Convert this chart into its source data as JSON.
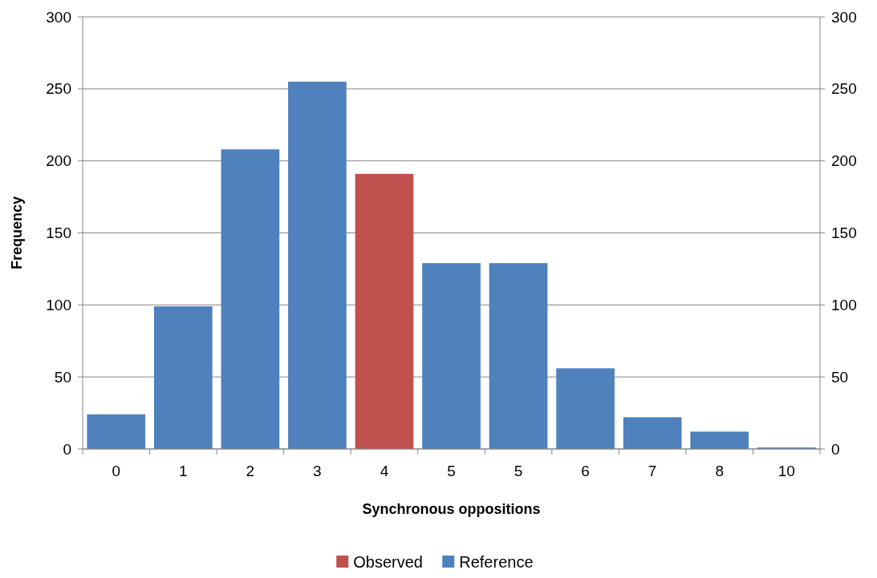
{
  "chart_data": {
    "type": "bar",
    "stacked": true,
    "xlabel": "Synchronous oppositions",
    "ylabel": "Frequency",
    "categories": [
      "0",
      "1",
      "2",
      "3",
      "4",
      "5",
      "5",
      "6",
      "7",
      "8",
      "10"
    ],
    "series": [
      {
        "name": "Observed",
        "color": "#c0504d",
        "values": [
          null,
          null,
          null,
          null,
          191,
          null,
          null,
          null,
          null,
          null,
          null
        ]
      },
      {
        "name": "Reference",
        "color": "#4f81bd",
        "values": [
          24,
          99,
          208,
          255,
          null,
          129,
          129,
          56,
          22,
          12,
          1
        ]
      }
    ],
    "ylim": [
      0,
      300
    ],
    "yticks": [
      0,
      50,
      100,
      150,
      200,
      250,
      300
    ],
    "y2lim": [
      0,
      300
    ],
    "y2ticks": [
      0,
      50,
      100,
      150,
      200,
      250,
      300
    ],
    "grid": "y",
    "legend": "bottom"
  }
}
